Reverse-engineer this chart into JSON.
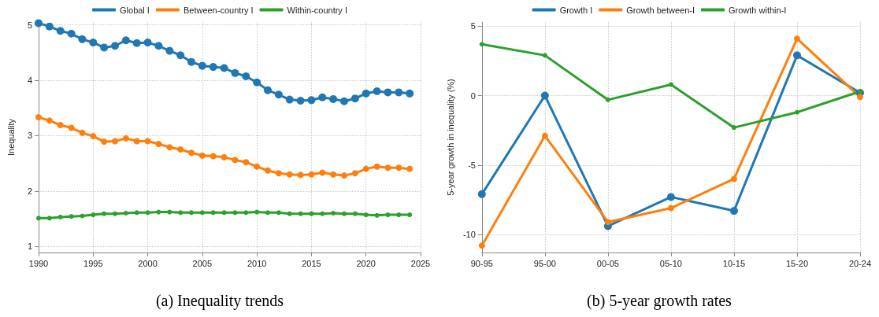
{
  "chart_data": [
    {
      "type": "line",
      "title": "(a) Inequality trends",
      "ylabel": "Inequality",
      "x": [
        1990,
        1991,
        1992,
        1993,
        1994,
        1995,
        1996,
        1997,
        1998,
        1999,
        2000,
        2001,
        2002,
        2003,
        2004,
        2005,
        2006,
        2007,
        2008,
        2009,
        2010,
        2011,
        2012,
        2013,
        2014,
        2015,
        2016,
        2017,
        2018,
        2019,
        2020,
        2021,
        2022,
        2023,
        2024
      ],
      "xlim": [
        1990,
        2025
      ],
      "xticks": [
        1990,
        1995,
        2000,
        2005,
        2010,
        2015,
        2020,
        2025
      ],
      "ylim": [
        0.89,
        5.05
      ],
      "yticks": [
        1,
        2,
        3,
        4,
        5
      ],
      "grid": true,
      "legend": "top",
      "marker": "circle",
      "line_style": "solid",
      "series": [
        {
          "name": "Global I",
          "color": "#1f77b4",
          "values": [
            5.03,
            4.97,
            4.89,
            4.84,
            4.74,
            4.68,
            4.59,
            4.62,
            4.72,
            4.67,
            4.68,
            4.62,
            4.53,
            4.45,
            4.33,
            4.26,
            4.24,
            4.22,
            4.13,
            4.07,
            3.96,
            3.82,
            3.74,
            3.65,
            3.63,
            3.64,
            3.69,
            3.66,
            3.62,
            3.67,
            3.76,
            3.8,
            3.78,
            3.78,
            3.76
          ]
        },
        {
          "name": "Between-country I",
          "color": "#ff7f0e",
          "values": [
            3.33,
            3.27,
            3.19,
            3.14,
            3.05,
            2.99,
            2.89,
            2.9,
            2.95,
            2.9,
            2.9,
            2.85,
            2.79,
            2.75,
            2.69,
            2.64,
            2.63,
            2.61,
            2.56,
            2.52,
            2.44,
            2.37,
            2.32,
            2.3,
            2.29,
            2.3,
            2.33,
            2.3,
            2.28,
            2.32,
            2.4,
            2.44,
            2.42,
            2.42,
            2.4
          ]
        },
        {
          "name": "Within-country I",
          "color": "#2ca02c",
          "values": [
            1.51,
            1.51,
            1.53,
            1.54,
            1.55,
            1.57,
            1.59,
            1.59,
            1.6,
            1.61,
            1.61,
            1.62,
            1.62,
            1.61,
            1.61,
            1.61,
            1.61,
            1.61,
            1.61,
            1.61,
            1.62,
            1.61,
            1.61,
            1.59,
            1.59,
            1.59,
            1.59,
            1.6,
            1.59,
            1.59,
            1.57,
            1.56,
            1.57,
            1.57,
            1.57
          ]
        }
      ]
    },
    {
      "type": "line",
      "title": "(b) 5-year growth rates",
      "ylabel": "5-year growth in inequality (%)",
      "categories": [
        "90-95",
        "95-00",
        "00-05",
        "05-10",
        "10-15",
        "15-20",
        "20-24"
      ],
      "ylim": [
        -11.3,
        5.3
      ],
      "yticks": [
        -10,
        -5,
        0,
        5
      ],
      "grid": true,
      "legend": "top",
      "marker": "circle",
      "line_style": "solid",
      "series": [
        {
          "name": "Growth I",
          "color": "#1f77b4",
          "values": [
            -7.1,
            0,
            -9.4,
            -7.3,
            -8.3,
            2.9,
            0.2
          ]
        },
        {
          "name": "Growth between-I",
          "color": "#ff7f0e",
          "values": [
            -10.8,
            -2.9,
            -9.1,
            -8.1,
            -6,
            4.1,
            -0.1
          ]
        },
        {
          "name": "Growth within-I",
          "color": "#2ca02c",
          "values": [
            3.7,
            2.9,
            -0.3,
            0.8,
            -2.3,
            -1.2,
            0.3
          ]
        }
      ]
    }
  ]
}
